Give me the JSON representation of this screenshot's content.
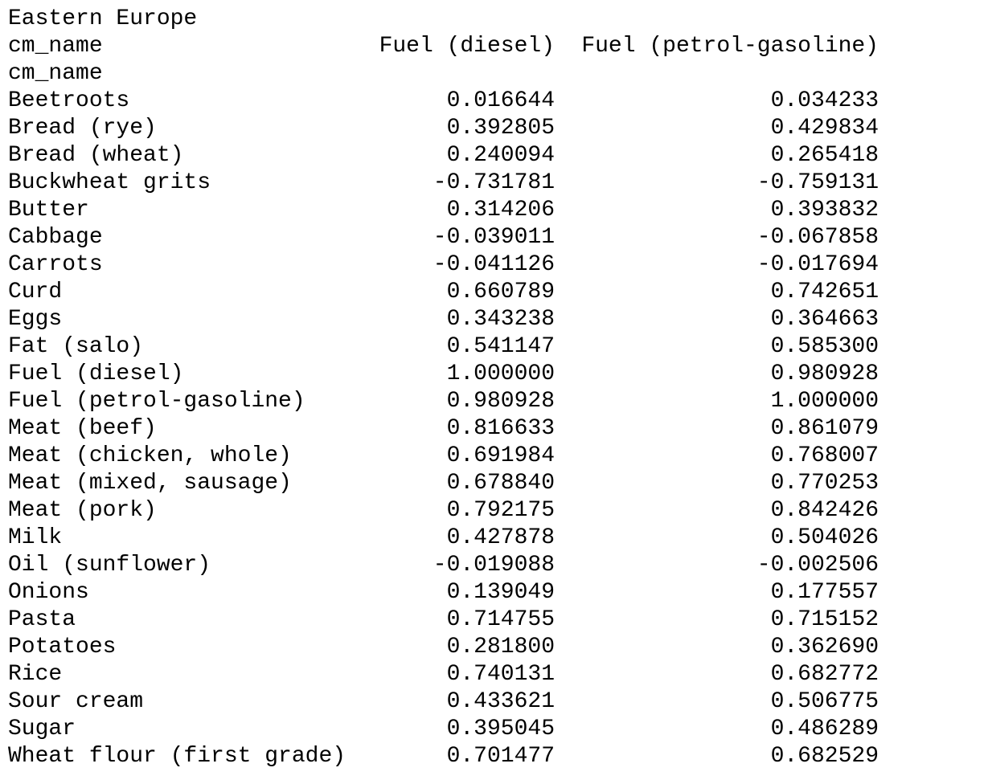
{
  "title": "Eastern Europe",
  "columns_name": "cm_name",
  "index_name": "cm_name",
  "columns": [
    "Fuel (diesel)",
    "Fuel (petrol-gasoline)"
  ],
  "rows": [
    {
      "label": "Beetroots",
      "values": [
        "0.016644",
        "0.034233"
      ]
    },
    {
      "label": "Bread (rye)",
      "values": [
        "0.392805",
        "0.429834"
      ]
    },
    {
      "label": "Bread (wheat)",
      "values": [
        "0.240094",
        "0.265418"
      ]
    },
    {
      "label": "Buckwheat grits",
      "values": [
        "-0.731781",
        "-0.759131"
      ]
    },
    {
      "label": "Butter",
      "values": [
        "0.314206",
        "0.393832"
      ]
    },
    {
      "label": "Cabbage",
      "values": [
        "-0.039011",
        "-0.067858"
      ]
    },
    {
      "label": "Carrots",
      "values": [
        "-0.041126",
        "-0.017694"
      ]
    },
    {
      "label": "Curd",
      "values": [
        "0.660789",
        "0.742651"
      ]
    },
    {
      "label": "Eggs",
      "values": [
        "0.343238",
        "0.364663"
      ]
    },
    {
      "label": "Fat (salo)",
      "values": [
        "0.541147",
        "0.585300"
      ]
    },
    {
      "label": "Fuel (diesel)",
      "values": [
        "1.000000",
        "0.980928"
      ]
    },
    {
      "label": "Fuel (petrol-gasoline)",
      "values": [
        "0.980928",
        "1.000000"
      ]
    },
    {
      "label": "Meat (beef)",
      "values": [
        "0.816633",
        "0.861079"
      ]
    },
    {
      "label": "Meat (chicken, whole)",
      "values": [
        "0.691984",
        "0.768007"
      ]
    },
    {
      "label": "Meat (mixed, sausage)",
      "values": [
        "0.678840",
        "0.770253"
      ]
    },
    {
      "label": "Meat (pork)",
      "values": [
        "0.792175",
        "0.842426"
      ]
    },
    {
      "label": "Milk",
      "values": [
        "0.427878",
        "0.504026"
      ]
    },
    {
      "label": "Oil (sunflower)",
      "values": [
        "-0.019088",
        "-0.002506"
      ]
    },
    {
      "label": "Onions",
      "values": [
        "0.139049",
        "0.177557"
      ]
    },
    {
      "label": "Pasta",
      "values": [
        "0.714755",
        "0.715152"
      ]
    },
    {
      "label": "Potatoes",
      "values": [
        "0.281800",
        "0.362690"
      ]
    },
    {
      "label": "Rice",
      "values": [
        "0.740131",
        "0.682772"
      ]
    },
    {
      "label": "Sour cream",
      "values": [
        "0.433621",
        "0.506775"
      ]
    },
    {
      "label": "Sugar",
      "values": [
        "0.395045",
        "0.486289"
      ]
    },
    {
      "label": "Wheat flour (first grade)",
      "values": [
        "0.701477",
        "0.682529"
      ]
    }
  ]
}
